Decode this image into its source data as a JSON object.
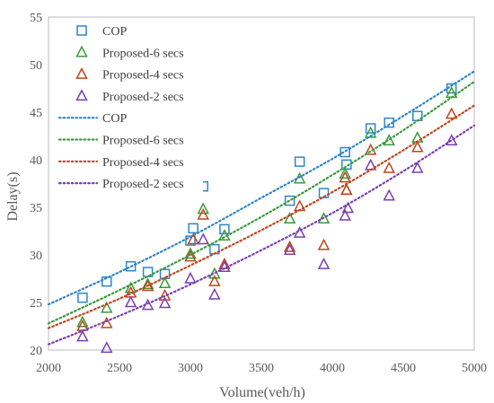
{
  "chart_data": {
    "type": "scatter",
    "xlabel": "Volume(veh/h)",
    "ylabel": "Delay(s)",
    "xlim": [
      2000,
      5000
    ],
    "ylim": [
      20,
      55
    ],
    "xticks": [
      2000,
      2500,
      3000,
      3500,
      4000,
      4500,
      5000
    ],
    "yticks": [
      20,
      25,
      30,
      35,
      40,
      45,
      50,
      55
    ],
    "grid": false,
    "legend_position": "top-left",
    "series": [
      {
        "name": "COP",
        "kind": "scatter",
        "marker": "square",
        "color": "#2e86c9",
        "x": [
          2240,
          2410,
          2580,
          2700,
          2820,
          3000,
          3020,
          3090,
          3170,
          3240,
          3700,
          3770,
          3940,
          4090,
          4100,
          4270,
          4400,
          4600,
          4840
        ],
        "y": [
          25.5,
          27.2,
          28.8,
          28.2,
          28.0,
          31.5,
          32.8,
          37.2,
          30.6,
          32.7,
          35.7,
          39.8,
          36.5,
          40.8,
          39.5,
          43.3,
          43.9,
          44.6,
          47.5
        ]
      },
      {
        "name": "Proposed-6 secs",
        "kind": "scatter",
        "marker": "triangle",
        "color": "#3a9a3a",
        "x": [
          2240,
          2410,
          2580,
          2700,
          2820,
          3000,
          3090,
          3170,
          3240,
          3700,
          3770,
          3940,
          4090,
          4100,
          4270,
          4400,
          4600,
          4840
        ],
        "y": [
          22.9,
          24.4,
          26.5,
          26.9,
          27.0,
          30.1,
          34.8,
          28.0,
          32.0,
          33.8,
          38.0,
          33.8,
          38.5,
          36.8,
          42.8,
          42.0,
          42.3,
          47.0
        ]
      },
      {
        "name": "Proposed-4 secs",
        "kind": "scatter",
        "marker": "triangle",
        "color": "#c0451e",
        "x": [
          2240,
          2410,
          2580,
          2700,
          2820,
          3000,
          3020,
          3090,
          3170,
          3240,
          3700,
          3770,
          3940,
          4090,
          4100,
          4270,
          4400,
          4600,
          4840
        ],
        "y": [
          22.5,
          22.8,
          26.0,
          26.7,
          25.7,
          29.8,
          31.6,
          34.2,
          27.2,
          29.0,
          30.8,
          35.1,
          31.0,
          38.1,
          36.8,
          41.0,
          39.1,
          41.3,
          44.8
        ]
      },
      {
        "name": "Proposed-2 secs",
        "kind": "scatter",
        "marker": "triangle",
        "color": "#7b3fb0",
        "x": [
          2240,
          2410,
          2580,
          2700,
          2820,
          3000,
          3090,
          3170,
          3240,
          3700,
          3770,
          3940,
          4090,
          4110,
          4270,
          4400,
          4600,
          4840
        ],
        "y": [
          21.4,
          20.2,
          25.0,
          24.7,
          24.9,
          27.5,
          31.6,
          25.8,
          28.7,
          30.5,
          32.3,
          29.0,
          34.1,
          34.9,
          39.4,
          36.2,
          39.1,
          42.0
        ]
      },
      {
        "name": "COP",
        "kind": "trend",
        "color": "#2e86c9",
        "x": [
          2000,
          2500,
          3000,
          3500,
          4000,
          4500,
          5000
        ],
        "y": [
          24.8,
          28.2,
          31.9,
          36.0,
          40.1,
          44.6,
          49.3
        ]
      },
      {
        "name": "Proposed-6 secs",
        "kind": "trend",
        "color": "#3a9a3a",
        "x": [
          2000,
          2500,
          3000,
          3500,
          4000,
          4500,
          5000
        ],
        "y": [
          22.8,
          26.3,
          30.0,
          34.0,
          38.4,
          43.1,
          48.2
        ]
      },
      {
        "name": "Proposed-4 secs",
        "kind": "trend",
        "color": "#c0451e",
        "x": [
          2000,
          2500,
          3000,
          3500,
          4000,
          4500,
          5000
        ],
        "y": [
          22.3,
          25.4,
          28.9,
          32.6,
          36.6,
          41.0,
          45.7
        ]
      },
      {
        "name": "Proposed-2 secs",
        "kind": "trend",
        "color": "#7b3fb0",
        "x": [
          2000,
          2500,
          3000,
          3500,
          4000,
          4500,
          5000
        ],
        "y": [
          20.6,
          23.6,
          26.9,
          30.5,
          34.4,
          38.8,
          43.6
        ]
      }
    ]
  }
}
